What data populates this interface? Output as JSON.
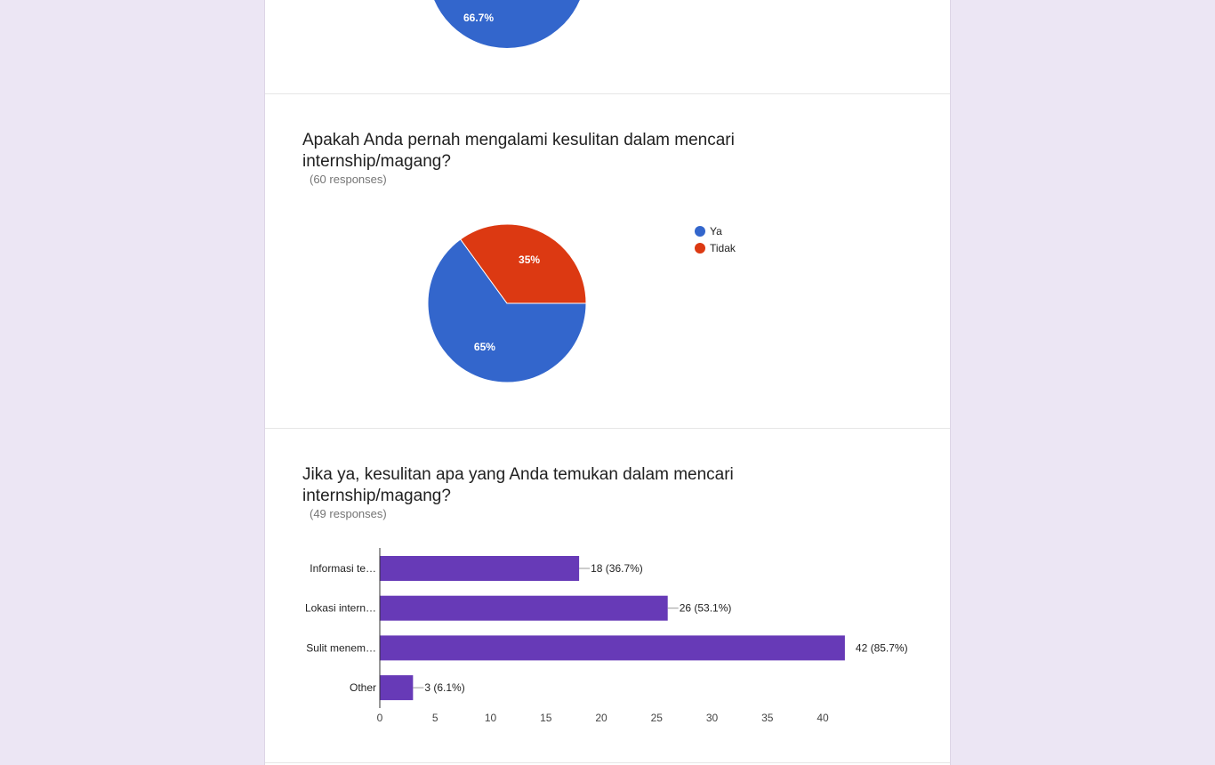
{
  "colors": {
    "blue": "#3366cc",
    "red": "#dc3912",
    "purple": "#673ab7"
  },
  "question1": {
    "chart_data": {
      "type": "pie",
      "slices": [
        {
          "label": "",
          "value": 66.7,
          "display": "66.7%"
        }
      ]
    }
  },
  "question2": {
    "title": "Apakah Anda pernah mengalami kesulitan dalam mencari internship/magang?",
    "responses": "(60 responses)",
    "chart_data": {
      "type": "pie",
      "legend_position": "right",
      "slices": [
        {
          "label": "Ya",
          "value": 65,
          "display": "65%",
          "color": "#3366cc"
        },
        {
          "label": "Tidak",
          "value": 35,
          "display": "35%",
          "color": "#dc3912"
        }
      ]
    }
  },
  "question3": {
    "title": "Jika ya, kesulitan apa yang Anda temukan dalam mencari internship/magang?",
    "responses": "(49 responses)",
    "chart_data": {
      "type": "bar",
      "orientation": "horizontal",
      "categories": [
        "Informasi te…",
        "Lokasi intern…",
        "Sulit menem…",
        "Other"
      ],
      "values": [
        18,
        26,
        42,
        3
      ],
      "labels": [
        "18 (36.7%)",
        "26 (53.1%)",
        "42 (85.7%)",
        "3 (6.1%)"
      ],
      "xticks": [
        0,
        5,
        10,
        15,
        20,
        25,
        30,
        35,
        40
      ],
      "xlim": [
        0,
        42
      ],
      "color": "#673ab7",
      "grid": false
    }
  }
}
